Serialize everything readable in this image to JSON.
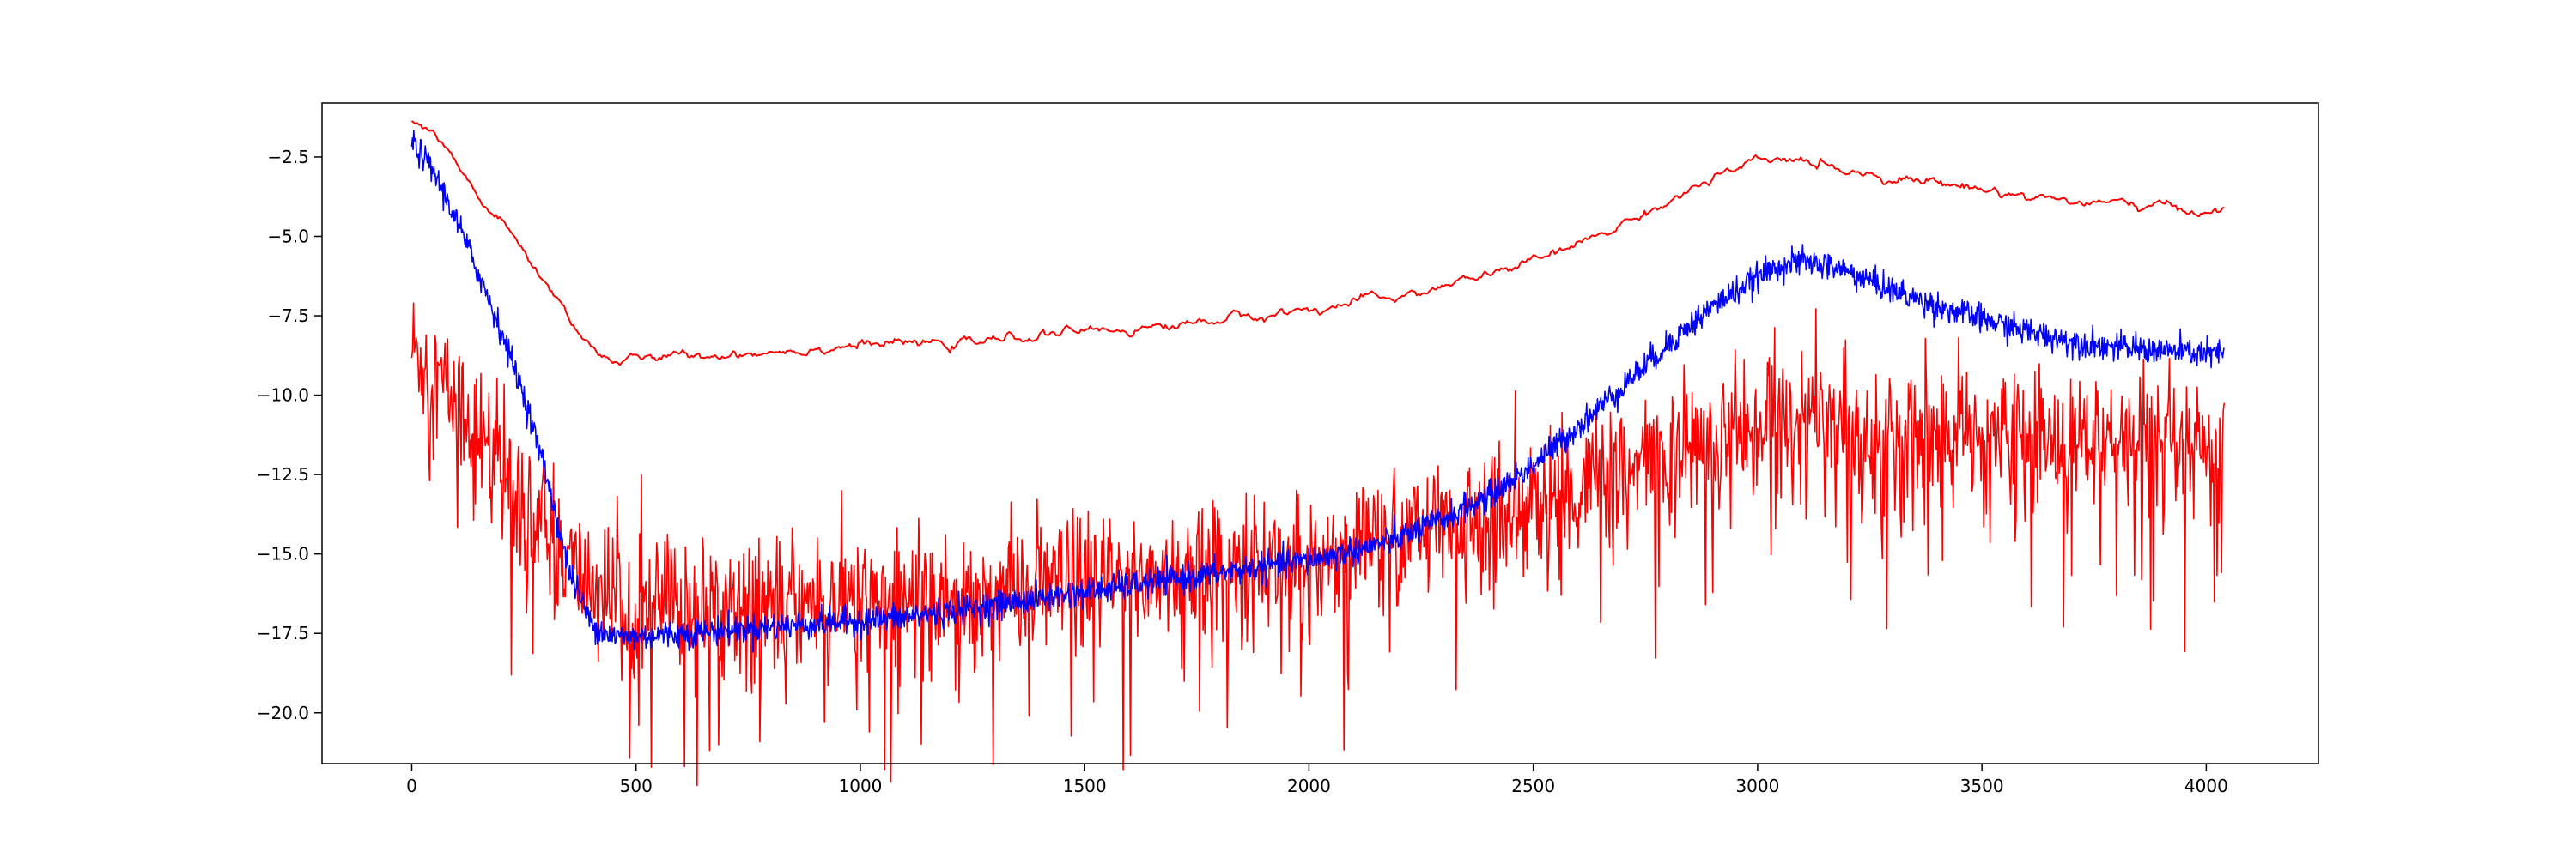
{
  "chart_data": {
    "type": "line",
    "title": "",
    "xlabel": "",
    "ylabel": "",
    "xlim": [
      -200,
      4250
    ],
    "ylim": [
      -21.6,
      -0.8
    ],
    "grid": false,
    "x_ticks": [
      0,
      500,
      1000,
      1500,
      2000,
      2500,
      3000,
      3500,
      4000
    ],
    "x_tick_labels": [
      "0",
      "500",
      "1000",
      "1500",
      "2000",
      "2500",
      "3000",
      "3500",
      "4000"
    ],
    "y_ticks": [
      -2.5,
      -5.0,
      -7.5,
      -10.0,
      -12.5,
      -15.0,
      -17.5,
      -20.0
    ],
    "y_tick_labels": [
      "−2.5",
      "−5.0",
      "−7.5",
      "−10.0",
      "−12.5",
      "−15.0",
      "−17.5",
      "−20.0"
    ],
    "series": [
      {
        "color": "#ff0000",
        "noise": "high",
        "x": [
          0,
          50,
          100,
          150,
          200,
          250,
          300,
          350,
          400,
          450,
          500,
          600,
          700,
          800,
          900,
          1000,
          1100,
          1200,
          1300,
          1400,
          1500,
          1600,
          1700,
          1800,
          1900,
          2000,
          2100,
          2200,
          2300,
          2400,
          2500,
          2600,
          2700,
          2800,
          2900,
          3000,
          3100,
          3200,
          3300,
          3400,
          3500,
          3600,
          3700,
          3800,
          3900,
          4000,
          4040
        ],
        "y": [
          -8.5,
          -9.3,
          -10.2,
          -11.2,
          -12.3,
          -13.3,
          -14.3,
          -15.3,
          -16.0,
          -16.3,
          -16.5,
          -16.6,
          -16.6,
          -16.5,
          -16.5,
          -16.4,
          -16.4,
          -16.3,
          -16.2,
          -16.1,
          -16.0,
          -15.8,
          -15.6,
          -15.5,
          -15.3,
          -15.1,
          -14.8,
          -14.5,
          -14.2,
          -13.8,
          -13.4,
          -13.0,
          -12.5,
          -12.0,
          -11.4,
          -10.8,
          -10.7,
          -11.0,
          -11.2,
          -11.3,
          -11.3,
          -11.3,
          -11.4,
          -11.6,
          -11.8,
          -12.0,
          -12.0
        ]
      },
      {
        "color": "#0000ff",
        "noise": "medium",
        "x": [
          0,
          50,
          100,
          150,
          200,
          250,
          300,
          350,
          400,
          450,
          500,
          600,
          700,
          800,
          900,
          1000,
          1100,
          1200,
          1300,
          1400,
          1500,
          1600,
          1700,
          1800,
          1900,
          2000,
          2100,
          2200,
          2300,
          2400,
          2500,
          2600,
          2700,
          2800,
          2900,
          3000,
          3050,
          3100,
          3150,
          3200,
          3300,
          3400,
          3500,
          3600,
          3700,
          3800,
          3900,
          4000,
          4040
        ],
        "y": [
          -2.0,
          -3.0,
          -4.5,
          -6.2,
          -8.0,
          -10.0,
          -12.5,
          -15.5,
          -17.2,
          -17.6,
          -17.6,
          -17.5,
          -17.4,
          -17.3,
          -17.2,
          -17.1,
          -17.0,
          -16.8,
          -16.6,
          -16.4,
          -16.2,
          -16.0,
          -15.8,
          -15.6,
          -15.4,
          -15.2,
          -14.9,
          -14.5,
          -13.9,
          -13.2,
          -12.2,
          -11.0,
          -9.7,
          -8.4,
          -7.2,
          -6.3,
          -5.9,
          -5.8,
          -5.9,
          -6.1,
          -6.7,
          -7.2,
          -7.6,
          -8.0,
          -8.3,
          -8.5,
          -8.6,
          -8.7,
          -8.7
        ]
      },
      {
        "color": "#ff0000",
        "noise": "low",
        "x": [
          0,
          50,
          100,
          150,
          200,
          250,
          300,
          350,
          400,
          450,
          500,
          600,
          700,
          800,
          900,
          1000,
          1100,
          1200,
          1300,
          1400,
          1500,
          1600,
          1700,
          1800,
          1900,
          2000,
          2100,
          2200,
          2300,
          2400,
          2500,
          2600,
          2700,
          2800,
          2900,
          3000,
          3100,
          3200,
          3300,
          3400,
          3500,
          3600,
          3700,
          3800,
          3900,
          4000,
          4040
        ],
        "y": [
          -1.4,
          -1.8,
          -2.8,
          -3.8,
          -4.6,
          -5.5,
          -6.5,
          -7.5,
          -8.5,
          -8.9,
          -8.9,
          -8.8,
          -8.7,
          -8.6,
          -8.5,
          -8.4,
          -8.4,
          -8.4,
          -8.3,
          -8.1,
          -8.0,
          -7.9,
          -7.8,
          -7.6,
          -7.5,
          -7.3,
          -7.1,
          -6.9,
          -6.6,
          -6.2,
          -5.8,
          -5.3,
          -4.6,
          -3.9,
          -3.2,
          -2.7,
          -2.6,
          -2.9,
          -3.1,
          -3.3,
          -3.5,
          -3.7,
          -3.9,
          -4.0,
          -4.1,
          -4.2,
          -4.2
        ]
      }
    ]
  }
}
